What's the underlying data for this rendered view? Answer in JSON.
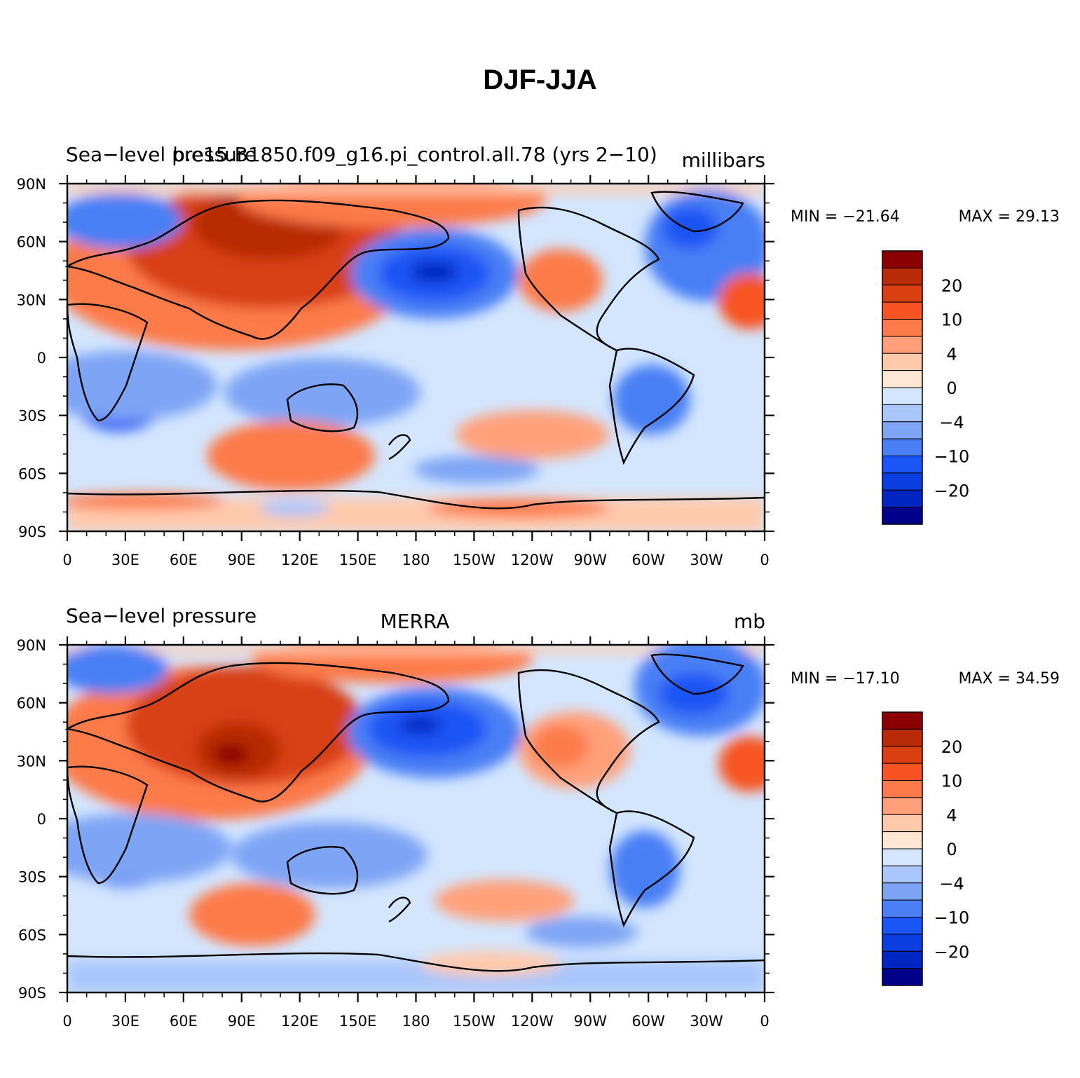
{
  "figure": {
    "title": "DJF-JJA"
  },
  "colors": {
    "scale": [
      "#00008b",
      "#0025c0",
      "#0a3ee0",
      "#1a55f5",
      "#4a7ff5",
      "#7ea4f5",
      "#aac6fb",
      "#d3e6fe",
      "#ffe6d5",
      "#ffc9ab",
      "#ffa07a",
      "#fd7a4a",
      "#f75423",
      "#d84012",
      "#b82b06",
      "#8b0000"
    ]
  },
  "panels": [
    {
      "id": "model",
      "left_title": "Sea−level pressure",
      "center_title": "b.e15.B1850.f09_g16.pi_control.all.78 (yrs 2−10)",
      "units": "millibars",
      "min_label": "MIN = −21.64",
      "max_label": "MAX =  29.13",
      "lat_ticks": [
        "90N",
        "60N",
        "30N",
        "0",
        "30S",
        "60S",
        "90S"
      ],
      "lon_ticks": [
        "0",
        "30E",
        "60E",
        "90E",
        "120E",
        "150E",
        "180",
        "150W",
        "120W",
        "90W",
        "60W",
        "30W",
        "0"
      ],
      "colorbar_labels": [
        "20",
        "10",
        "4",
        "0",
        "−4",
        "−10",
        "−20"
      ]
    },
    {
      "id": "obs",
      "left_title": "Sea−level pressure",
      "center_title": "MERRA",
      "units": "mb",
      "min_label": "MIN = −17.10",
      "max_label": "MAX =  34.59",
      "lat_ticks": [
        "90N",
        "60N",
        "30N",
        "0",
        "30S",
        "60S",
        "90S"
      ],
      "lon_ticks": [
        "0",
        "30E",
        "60E",
        "90E",
        "120E",
        "150E",
        "180",
        "150W",
        "120W",
        "90W",
        "60W",
        "30W",
        "0"
      ],
      "colorbar_labels": [
        "20",
        "10",
        "4",
        "0",
        "−4",
        "−10",
        "−20"
      ]
    }
  ]
}
